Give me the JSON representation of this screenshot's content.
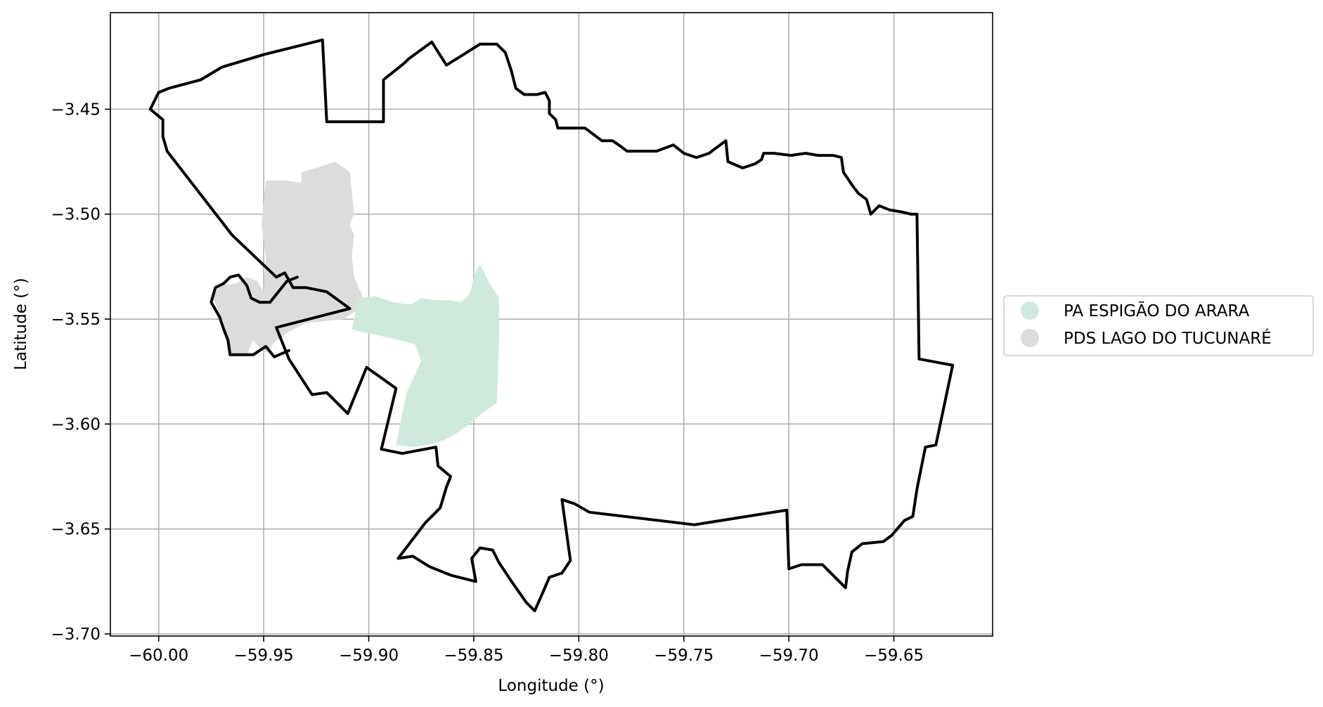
{
  "chart_data": {
    "type": "map",
    "xlabel": "Longitude (°)",
    "ylabel": "Latitude (°)",
    "xlim": [
      -60.023,
      -59.603
    ],
    "ylim": [
      -3.701,
      -3.404
    ],
    "grid": true,
    "legend_placement": "center-right outside",
    "x_ticks": [
      {
        "value": -60.0,
        "label": "−60.00"
      },
      {
        "value": -59.95,
        "label": "−59.95"
      },
      {
        "value": -59.9,
        "label": "−59.90"
      },
      {
        "value": -59.85,
        "label": "−59.85"
      },
      {
        "value": -59.8,
        "label": "−59.80"
      },
      {
        "value": -59.75,
        "label": "−59.75"
      },
      {
        "value": -59.7,
        "label": "−59.70"
      },
      {
        "value": -59.65,
        "label": "−59.65"
      }
    ],
    "y_ticks": [
      {
        "value": -3.45,
        "label": "−3.45"
      },
      {
        "value": -3.5,
        "label": "−3.50"
      },
      {
        "value": -3.55,
        "label": "−3.55"
      },
      {
        "value": -3.6,
        "label": "−3.60"
      },
      {
        "value": -3.65,
        "label": "−3.65"
      },
      {
        "value": -3.7,
        "label": "−3.70"
      }
    ],
    "legend": [
      {
        "name": "PA ESPIGÃO DO ARARA",
        "color": "#cfeadc"
      },
      {
        "name": "PDS LAGO DO TUCUNARÉ",
        "color": "#dcdcdc"
      }
    ],
    "outline_color": "#000000",
    "grid_color": "#b0b0b0",
    "areas": [
      {
        "name": "PDS LAGO DO TUCUNARÉ",
        "color": "#dcdcdc",
        "coords": [
          [
            -59.949,
            -3.484
          ],
          [
            -59.94,
            -3.484
          ],
          [
            -59.932,
            -3.485
          ],
          [
            -59.932,
            -3.48
          ],
          [
            -59.925,
            -3.478
          ],
          [
            -59.916,
            -3.475
          ],
          [
            -59.909,
            -3.48
          ],
          [
            -59.908,
            -3.49
          ],
          [
            -59.907,
            -3.5
          ],
          [
            -59.909,
            -3.505
          ],
          [
            -59.907,
            -3.51
          ],
          [
            -59.908,
            -3.52
          ],
          [
            -59.907,
            -3.53
          ],
          [
            -59.903,
            -3.539
          ],
          [
            -59.906,
            -3.546
          ],
          [
            -59.912,
            -3.55
          ],
          [
            -59.93,
            -3.552
          ],
          [
            -59.938,
            -3.556
          ],
          [
            -59.945,
            -3.561
          ],
          [
            -59.948,
            -3.566
          ],
          [
            -59.952,
            -3.564
          ],
          [
            -59.955,
            -3.56
          ],
          [
            -59.958,
            -3.567
          ],
          [
            -59.966,
            -3.567
          ],
          [
            -59.968,
            -3.56
          ],
          [
            -59.969,
            -3.552
          ],
          [
            -59.972,
            -3.545
          ],
          [
            -59.975,
            -3.538
          ],
          [
            -59.97,
            -3.534
          ],
          [
            -59.963,
            -3.533
          ],
          [
            -59.958,
            -3.53
          ],
          [
            -59.953,
            -3.532
          ],
          [
            -59.95,
            -3.537
          ],
          [
            -59.949,
            -3.52
          ],
          [
            -59.951,
            -3.505
          ]
        ]
      },
      {
        "name": "PA ESPIGÃO DO ARARA",
        "color": "#cfeadc",
        "coords": [
          [
            -59.908,
            -3.555
          ],
          [
            -59.905,
            -3.54
          ],
          [
            -59.897,
            -3.539
          ],
          [
            -59.888,
            -3.542
          ],
          [
            -59.88,
            -3.543
          ],
          [
            -59.875,
            -3.54
          ],
          [
            -59.868,
            -3.541
          ],
          [
            -59.861,
            -3.541
          ],
          [
            -59.856,
            -3.542
          ],
          [
            -59.852,
            -3.538
          ],
          [
            -59.849,
            -3.527
          ],
          [
            -59.847,
            -3.524
          ],
          [
            -59.843,
            -3.532
          ],
          [
            -59.838,
            -3.54
          ],
          [
            -59.838,
            -3.56
          ],
          [
            -59.839,
            -3.59
          ],
          [
            -59.846,
            -3.595
          ],
          [
            -59.852,
            -3.6
          ],
          [
            -59.859,
            -3.605
          ],
          [
            -59.865,
            -3.608
          ],
          [
            -59.872,
            -3.61
          ],
          [
            -59.879,
            -3.611
          ],
          [
            -59.887,
            -3.61
          ],
          [
            -59.882,
            -3.585
          ],
          [
            -59.875,
            -3.57
          ],
          [
            -59.878,
            -3.562
          ],
          [
            -59.89,
            -3.559
          ]
        ]
      }
    ],
    "outline": [
      [
        -60.004,
        -3.45
      ],
      [
        -60.0,
        -3.442
      ],
      [
        -59.995,
        -3.44
      ],
      [
        -59.98,
        -3.436
      ],
      [
        -59.97,
        -3.43
      ],
      [
        -59.95,
        -3.424
      ],
      [
        -59.922,
        -3.417
      ],
      [
        -59.92,
        -3.456
      ],
      [
        -59.893,
        -3.456
      ],
      [
        -59.893,
        -3.436
      ],
      [
        -59.883,
        -3.428
      ],
      [
        -59.881,
        -3.426
      ],
      [
        -59.87,
        -3.418
      ],
      [
        -59.863,
        -3.429
      ],
      [
        -59.847,
        -3.419
      ],
      [
        -59.839,
        -3.419
      ],
      [
        -59.835,
        -3.423
      ],
      [
        -59.832,
        -3.432
      ],
      [
        -59.83,
        -3.44
      ],
      [
        -59.826,
        -3.443
      ],
      [
        -59.82,
        -3.443
      ],
      [
        -59.816,
        -3.442
      ],
      [
        -59.814,
        -3.446
      ],
      [
        -59.814,
        -3.452
      ],
      [
        -59.811,
        -3.455
      ],
      [
        -59.81,
        -3.459
      ],
      [
        -59.797,
        -3.459
      ],
      [
        -59.789,
        -3.465
      ],
      [
        -59.784,
        -3.465
      ],
      [
        -59.781,
        -3.467
      ],
      [
        -59.777,
        -3.47
      ],
      [
        -59.767,
        -3.47
      ],
      [
        -59.763,
        -3.47
      ],
      [
        -59.755,
        -3.467
      ],
      [
        -59.75,
        -3.471
      ],
      [
        -59.744,
        -3.473
      ],
      [
        -59.738,
        -3.471
      ],
      [
        -59.734,
        -3.468
      ],
      [
        -59.73,
        -3.465
      ],
      [
        -59.729,
        -3.475
      ],
      [
        -59.722,
        -3.478
      ],
      [
        -59.716,
        -3.476
      ],
      [
        -59.713,
        -3.474
      ],
      [
        -59.712,
        -3.471
      ],
      [
        -59.707,
        -3.471
      ],
      [
        -59.699,
        -3.472
      ],
      [
        -59.692,
        -3.471
      ],
      [
        -59.686,
        -3.472
      ],
      [
        -59.679,
        -3.472
      ],
      [
        -59.675,
        -3.473
      ],
      [
        -59.674,
        -3.48
      ],
      [
        -59.67,
        -3.486
      ],
      [
        -59.667,
        -3.49
      ],
      [
        -59.663,
        -3.493
      ],
      [
        -59.661,
        -3.5
      ],
      [
        -59.657,
        -3.496
      ],
      [
        -59.652,
        -3.498
      ],
      [
        -59.646,
        -3.499
      ],
      [
        -59.642,
        -3.5
      ],
      [
        -59.639,
        -3.5
      ],
      [
        -59.638,
        -3.569
      ],
      [
        -59.622,
        -3.572
      ],
      [
        -59.63,
        -3.61
      ],
      [
        -59.635,
        -3.611
      ],
      [
        -59.639,
        -3.631
      ],
      [
        -59.641,
        -3.644
      ],
      [
        -59.645,
        -3.646
      ],
      [
        -59.651,
        -3.653
      ],
      [
        -59.655,
        -3.656
      ],
      [
        -59.665,
        -3.657
      ],
      [
        -59.67,
        -3.661
      ],
      [
        -59.672,
        -3.67
      ],
      [
        -59.673,
        -3.678
      ],
      [
        -59.677,
        -3.674
      ],
      [
        -59.684,
        -3.667
      ],
      [
        -59.694,
        -3.667
      ],
      [
        -59.7,
        -3.669
      ],
      [
        -59.701,
        -3.641
      ],
      [
        -59.745,
        -3.648
      ],
      [
        -59.795,
        -3.642
      ],
      [
        -59.802,
        -3.638
      ],
      [
        -59.808,
        -3.636
      ],
      [
        -59.804,
        -3.665
      ],
      [
        -59.808,
        -3.671
      ],
      [
        -59.814,
        -3.673
      ],
      [
        -59.817,
        -3.68
      ],
      [
        -59.821,
        -3.689
      ],
      [
        -59.825,
        -3.685
      ],
      [
        -59.832,
        -3.675
      ],
      [
        -59.838,
        -3.666
      ],
      [
        -59.841,
        -3.66
      ],
      [
        -59.847,
        -3.659
      ],
      [
        -59.851,
        -3.664
      ],
      [
        -59.849,
        -3.675
      ],
      [
        -59.861,
        -3.672
      ],
      [
        -59.871,
        -3.668
      ],
      [
        -59.879,
        -3.663
      ],
      [
        -59.886,
        -3.664
      ],
      [
        -59.873,
        -3.647
      ],
      [
        -59.866,
        -3.64
      ],
      [
        -59.863,
        -3.63
      ],
      [
        -59.861,
        -3.625
      ],
      [
        -59.867,
        -3.62
      ],
      [
        -59.868,
        -3.611
      ],
      [
        -59.884,
        -3.614
      ],
      [
        -59.894,
        -3.612
      ],
      [
        -59.887,
        -3.583
      ],
      [
        -59.901,
        -3.573
      ],
      [
        -59.91,
        -3.595
      ],
      [
        -59.92,
        -3.585
      ],
      [
        -59.927,
        -3.586
      ],
      [
        -59.938,
        -3.569
      ],
      [
        -59.944,
        -3.554
      ],
      [
        -59.909,
        -3.545
      ],
      [
        -59.92,
        -3.537
      ],
      [
        -59.93,
        -3.535
      ],
      [
        -59.936,
        -3.535
      ],
      [
        -59.94,
        -3.528
      ],
      [
        -59.944,
        -3.53
      ],
      [
        -59.965,
        -3.51
      ],
      [
        -59.996,
        -3.47
      ],
      [
        -59.998,
        -3.463
      ],
      [
        -59.998,
        -3.455
      ],
      [
        -60.004,
        -3.45
      ]
    ],
    "inner_lobe": [
      [
        -59.934,
        -3.53
      ],
      [
        -59.939,
        -3.532
      ],
      [
        -59.943,
        -3.537
      ],
      [
        -59.947,
        -3.542
      ],
      [
        -59.952,
        -3.542
      ],
      [
        -59.956,
        -3.54
      ],
      [
        -59.958,
        -3.534
      ],
      [
        -59.962,
        -3.529
      ],
      [
        -59.966,
        -3.53
      ],
      [
        -59.969,
        -3.533
      ],
      [
        -59.973,
        -3.535
      ],
      [
        -59.975,
        -3.542
      ],
      [
        -59.971,
        -3.549
      ],
      [
        -59.969,
        -3.555
      ],
      [
        -59.967,
        -3.56
      ],
      [
        -59.966,
        -3.567
      ],
      [
        -59.955,
        -3.567
      ],
      [
        -59.949,
        -3.563
      ],
      [
        -59.945,
        -3.568
      ],
      [
        -59.938,
        -3.565
      ]
    ]
  }
}
